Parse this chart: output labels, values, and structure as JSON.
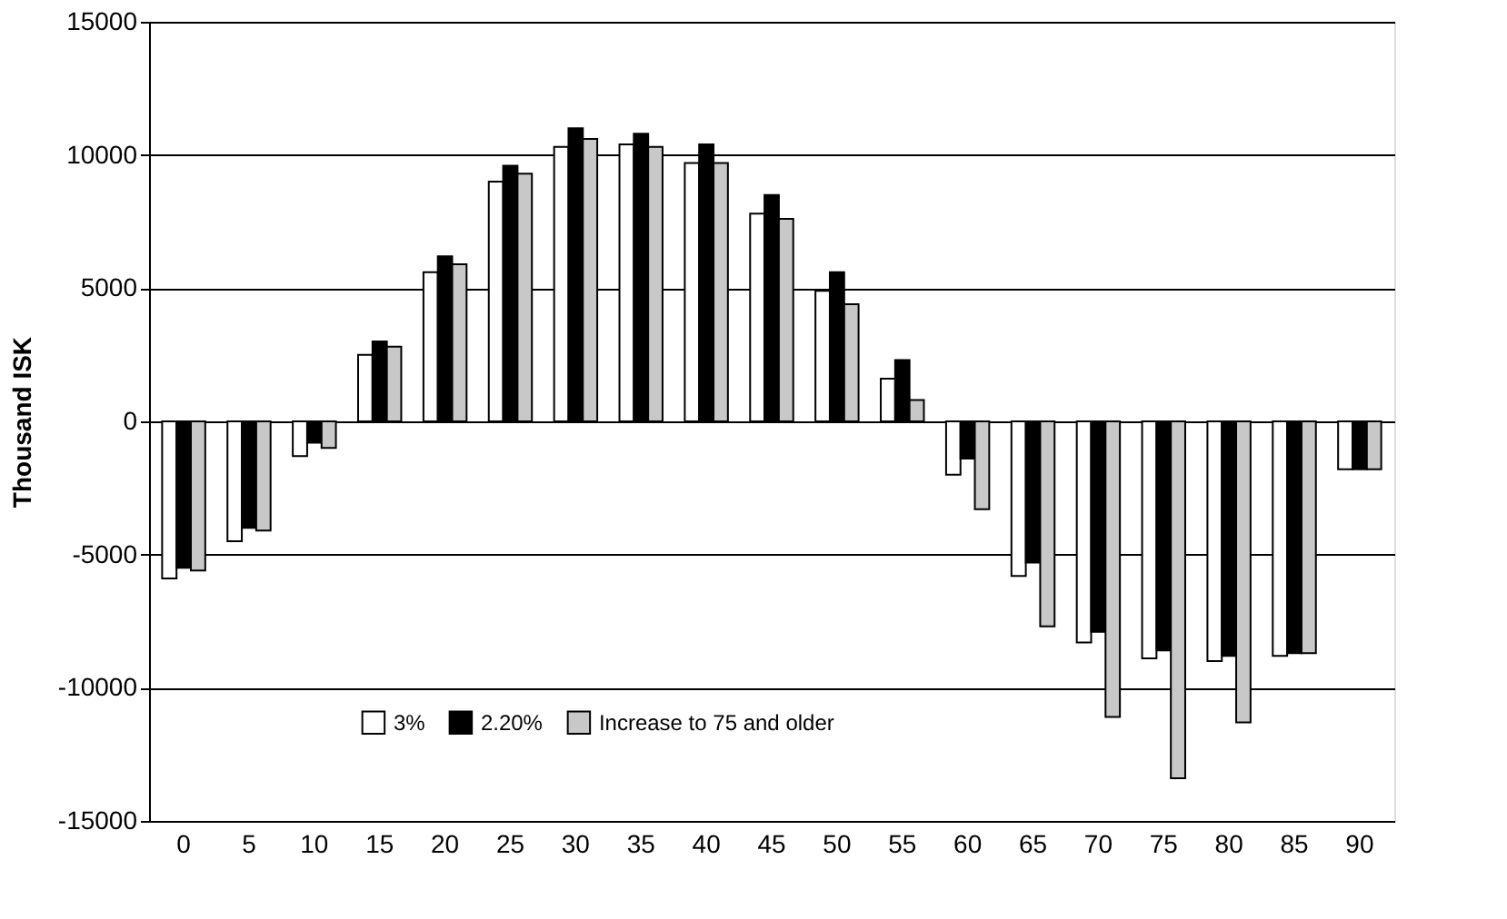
{
  "chart_data": {
    "type": "bar",
    "ylabel": "Thousand ISK",
    "categories": [
      "0",
      "5",
      "10",
      "15",
      "20",
      "25",
      "30",
      "35",
      "40",
      "45",
      "50",
      "55",
      "60",
      "65",
      "70",
      "75",
      "80",
      "85",
      "90"
    ],
    "series": [
      {
        "name": "3%",
        "color": "#ffffff",
        "values": [
          -5900,
          -4500,
          -1300,
          2500,
          5600,
          9000,
          10300,
          10400,
          9700,
          7800,
          4900,
          1600,
          -2000,
          -5800,
          -8300,
          -8900,
          -9000,
          -8800,
          -1800
        ]
      },
      {
        "name": "2.20%",
        "color": "#000000",
        "values": [
          -5500,
          -4000,
          -800,
          3000,
          6200,
          9600,
          11000,
          10800,
          10400,
          8500,
          5600,
          2300,
          -1400,
          -5300,
          -7900,
          -8600,
          -8800,
          -8700,
          -1800
        ]
      },
      {
        "name": "Increase to 75 and older",
        "color": "#c8c8c8",
        "values": [
          -5600,
          -4100,
          -1000,
          2800,
          5900,
          9300,
          10600,
          10300,
          9700,
          7600,
          4400,
          800,
          -3300,
          -7700,
          -11100,
          -13400,
          -11300,
          -8700,
          -1800
        ]
      }
    ],
    "ylim": [
      -15000,
      15000
    ],
    "yticks": [
      -15000,
      -10000,
      -5000,
      0,
      5000,
      10000,
      15000
    ],
    "grid": "y",
    "legend": "bottom"
  }
}
